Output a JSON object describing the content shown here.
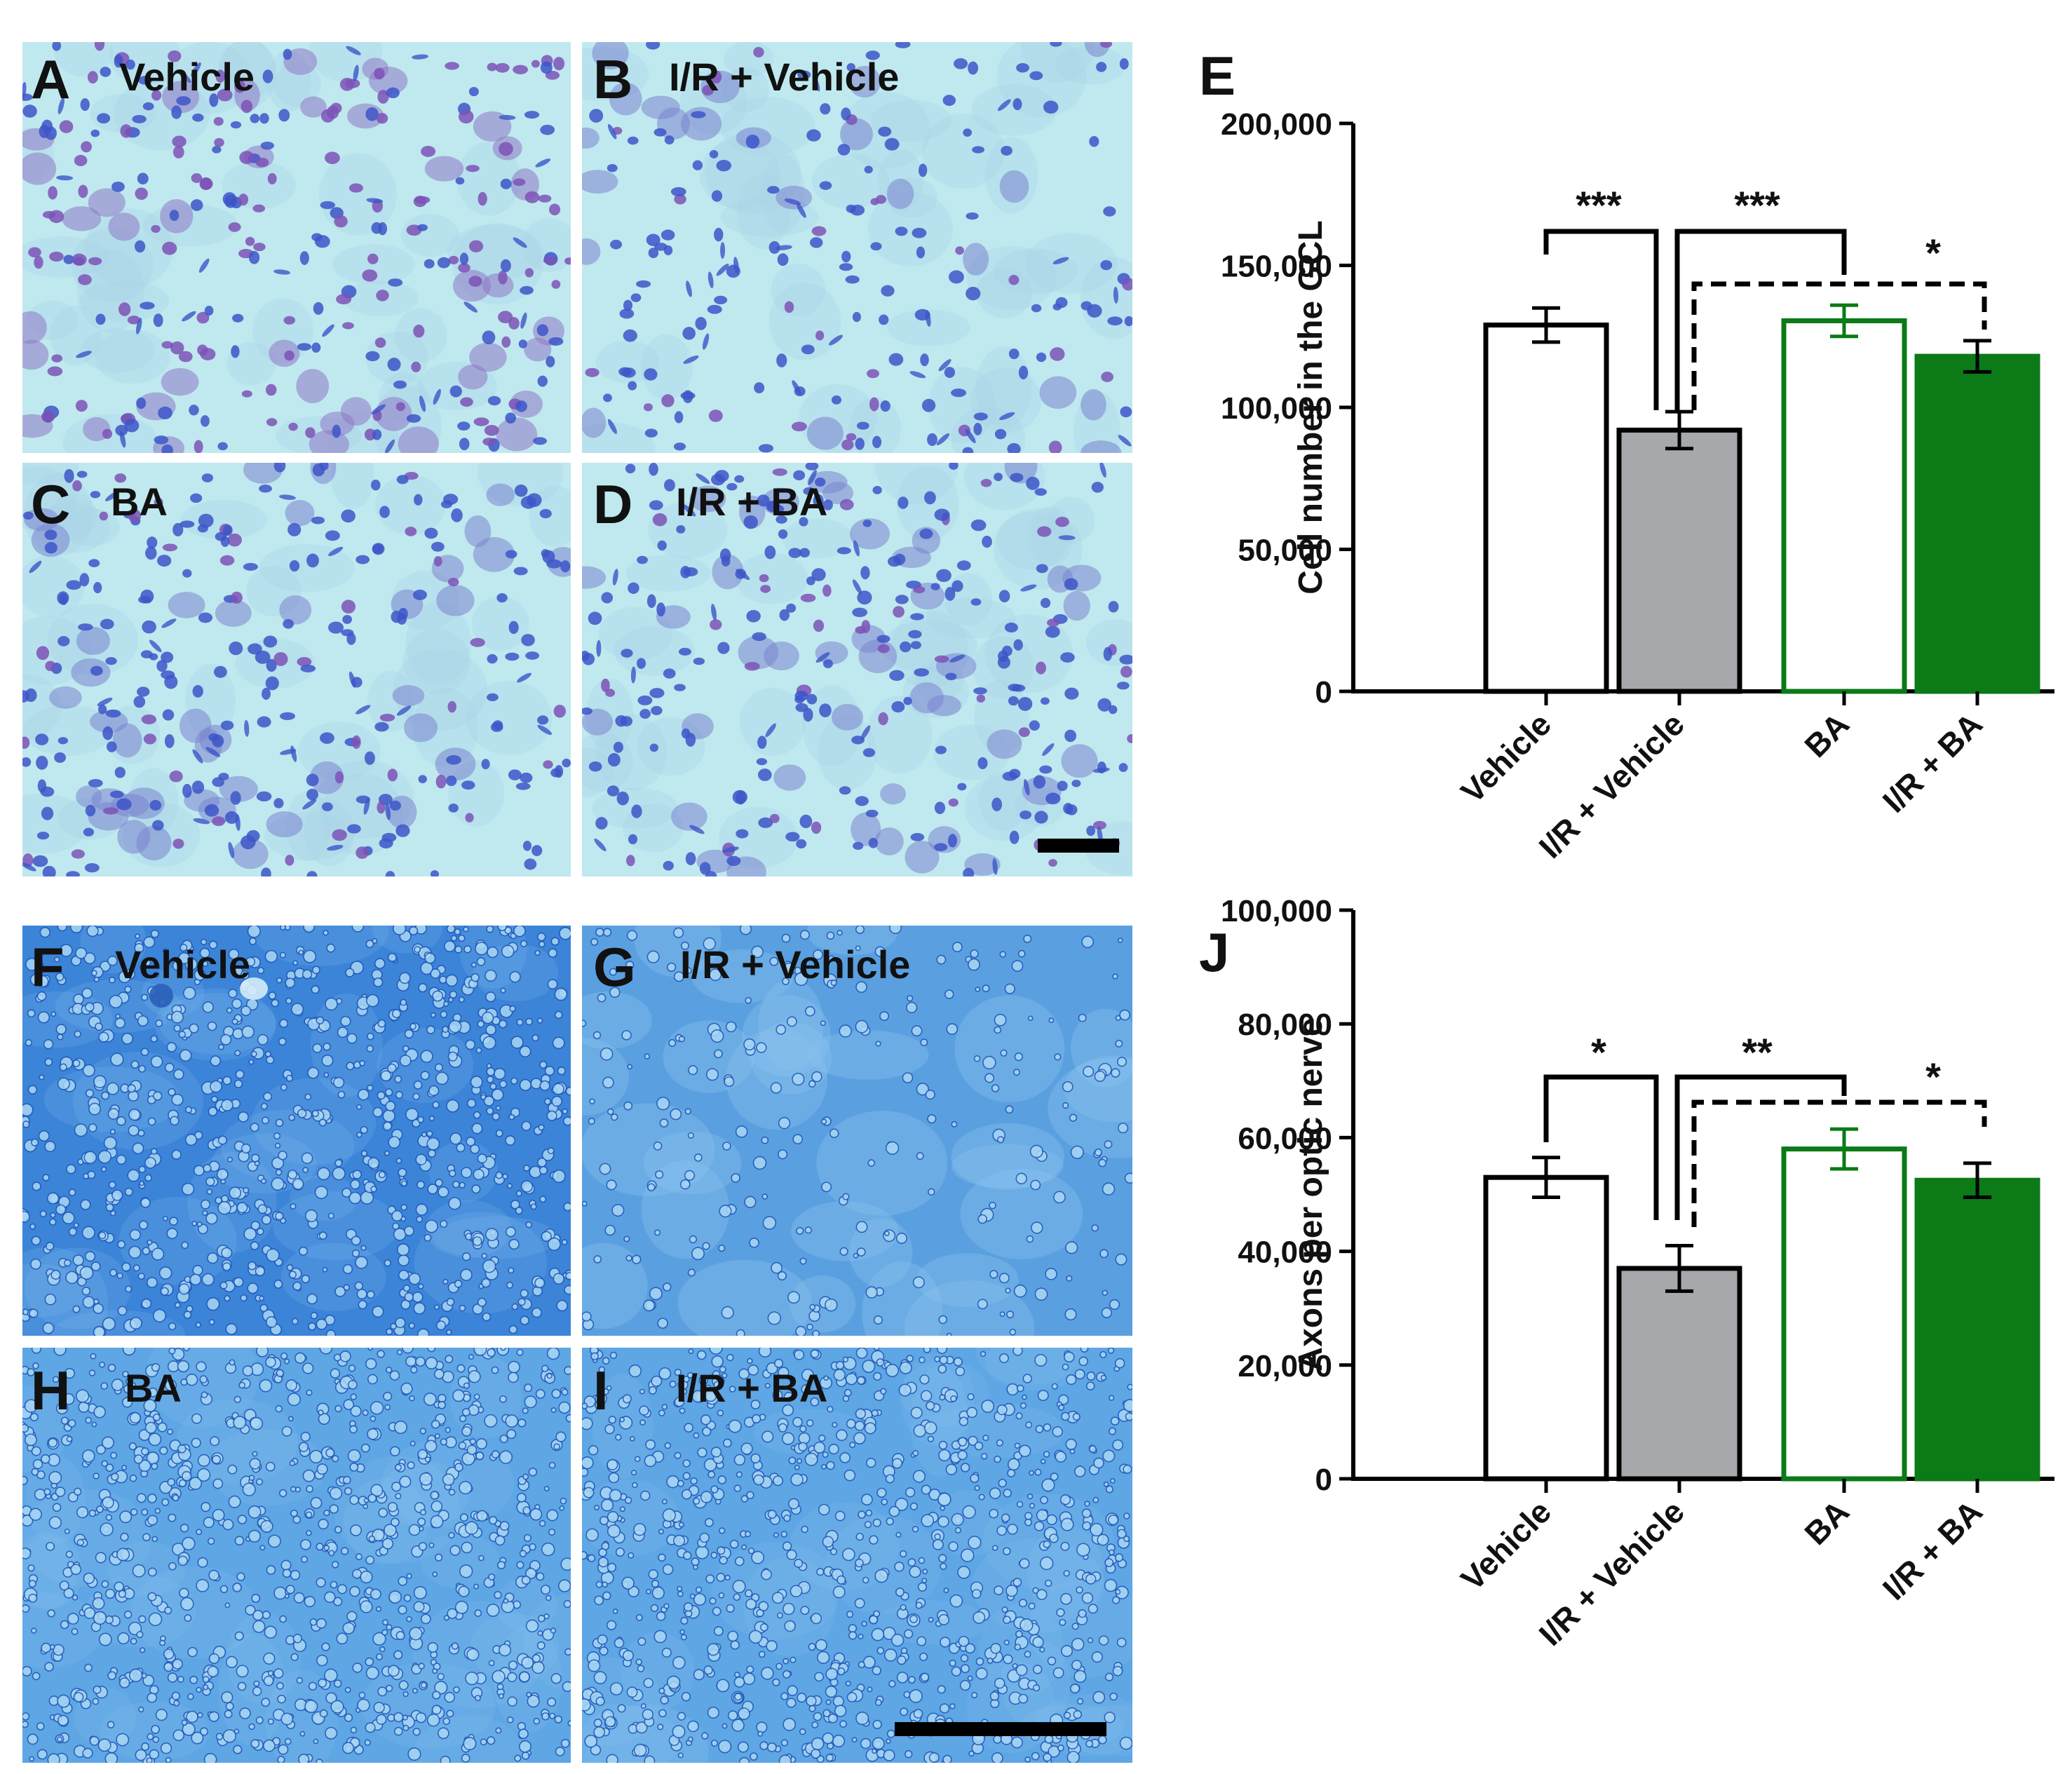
{
  "colors": {
    "nissl_bg": "#bfe9ee",
    "nissl_cell": "#3d55c8",
    "nissl_violet": "#7d52b6",
    "nerve_bg": "#3f8bdc",
    "nerve_light": "#a9d7f4",
    "nerve_dark": "#1f56b8",
    "bar_gray": "#a7a8ab",
    "bar_green": "#0b7a17",
    "axis": "#000000"
  },
  "micrographs": [
    {
      "letter": "A",
      "title": "Vehicle",
      "kind": "nissl",
      "variant": "vehicle"
    },
    {
      "letter": "B",
      "title": "I/R + Vehicle",
      "kind": "nissl",
      "variant": "ir"
    },
    {
      "letter": "C",
      "title": "BA",
      "kind": "nissl",
      "variant": "ba"
    },
    {
      "letter": "D",
      "title": "I/R + BA",
      "kind": "nissl",
      "variant": "irba"
    },
    {
      "letter": "F",
      "title": "Vehicle",
      "kind": "nerve",
      "variant": "vehicle"
    },
    {
      "letter": "G",
      "title": "I/R + Vehicle",
      "kind": "nerve",
      "variant": "ir"
    },
    {
      "letter": "H",
      "title": "BA",
      "kind": "nerve",
      "variant": "ba"
    },
    {
      "letter": "I",
      "title": "I/R + BA",
      "kind": "nerve",
      "variant": "irba"
    }
  ],
  "chart_data": [
    {
      "panel": "E",
      "type": "bar",
      "ylabel": "Cell number in the GCL",
      "ylim": [
        0,
        200000
      ],
      "yticks": [
        0,
        50000,
        100000,
        150000,
        200000
      ],
      "ytick_labels": [
        "0",
        "50,000",
        "100,000",
        "150,000",
        "200,000"
      ],
      "categories": [
        "Vehicle",
        "I/R + Vehicle",
        "BA",
        "I/R + BA"
      ],
      "values": [
        129000,
        92000,
        130500,
        118000
      ],
      "errors": [
        6000,
        6500,
        5500,
        5500
      ],
      "bar_styles": [
        "white",
        "gray",
        "green-outline",
        "green-fill"
      ],
      "annotations": [
        {
          "from": 0,
          "to": 1,
          "label": "***",
          "style": "solid"
        },
        {
          "from": 1,
          "to": 2,
          "label": "***",
          "style": "solid"
        },
        {
          "from": 1,
          "to": 3,
          "label": "*",
          "style": "dashed"
        }
      ]
    },
    {
      "panel": "J",
      "type": "bar",
      "ylabel": "Axons per optic nerve",
      "ylim": [
        0,
        100000
      ],
      "yticks": [
        0,
        20000,
        40000,
        60000,
        80000,
        100000
      ],
      "ytick_labels": [
        "0",
        "20,000",
        "40,000",
        "60,000",
        "80,000",
        "100,000"
      ],
      "categories": [
        "Vehicle",
        "I/R + Vehicle",
        "BA",
        "I/R + BA"
      ],
      "values": [
        53000,
        37000,
        58000,
        52500
      ],
      "errors": [
        3500,
        4000,
        3500,
        3000
      ],
      "bar_styles": [
        "white",
        "gray",
        "green-outline",
        "green-fill"
      ],
      "annotations": [
        {
          "from": 0,
          "to": 1,
          "label": "*",
          "style": "solid"
        },
        {
          "from": 1,
          "to": 2,
          "label": "**",
          "style": "solid"
        },
        {
          "from": 1,
          "to": 3,
          "label": "*",
          "style": "dashed"
        }
      ]
    }
  ]
}
